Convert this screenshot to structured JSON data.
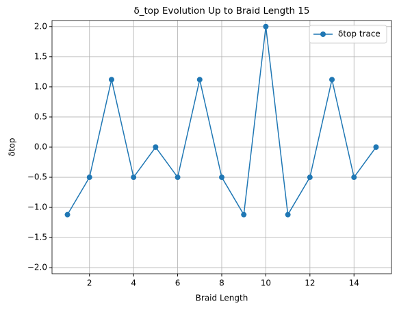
{
  "chart_data": {
    "type": "line",
    "title": "δ_top Evolution Up to Braid Length 15",
    "xlabel": "Braid Length",
    "ylabel": "δtop",
    "x": [
      1,
      2,
      3,
      4,
      5,
      6,
      7,
      8,
      9,
      10,
      11,
      12,
      13,
      14,
      15
    ],
    "series": [
      {
        "name": "δtop trace",
        "color": "#1f77b4",
        "values": [
          -1.12,
          -0.5,
          1.12,
          -0.5,
          0,
          -0.5,
          1.12,
          -0.5,
          -1.12,
          2,
          -1.12,
          -0.5,
          1.12,
          -0.5,
          0
        ]
      }
    ],
    "xlim": [
      0.3,
      15.7
    ],
    "ylim": [
      -2.1,
      2.1
    ],
    "xticks": [
      2,
      4,
      6,
      8,
      10,
      12,
      14
    ],
    "yticks": [
      {
        "value": -2,
        "label": "−2.0"
      },
      {
        "value": -1.5,
        "label": "−1.5"
      },
      {
        "value": -1,
        "label": "−1.0"
      },
      {
        "value": -0.5,
        "label": "−0.5"
      },
      {
        "value": 0,
        "label": "0.0"
      },
      {
        "value": 0.5,
        "label": "0.5"
      },
      {
        "value": 1,
        "label": "1.0"
      },
      {
        "value": 1.5,
        "label": "1.5"
      },
      {
        "value": 2,
        "label": "2.0"
      }
    ],
    "grid": true,
    "legend": "upper right"
  }
}
